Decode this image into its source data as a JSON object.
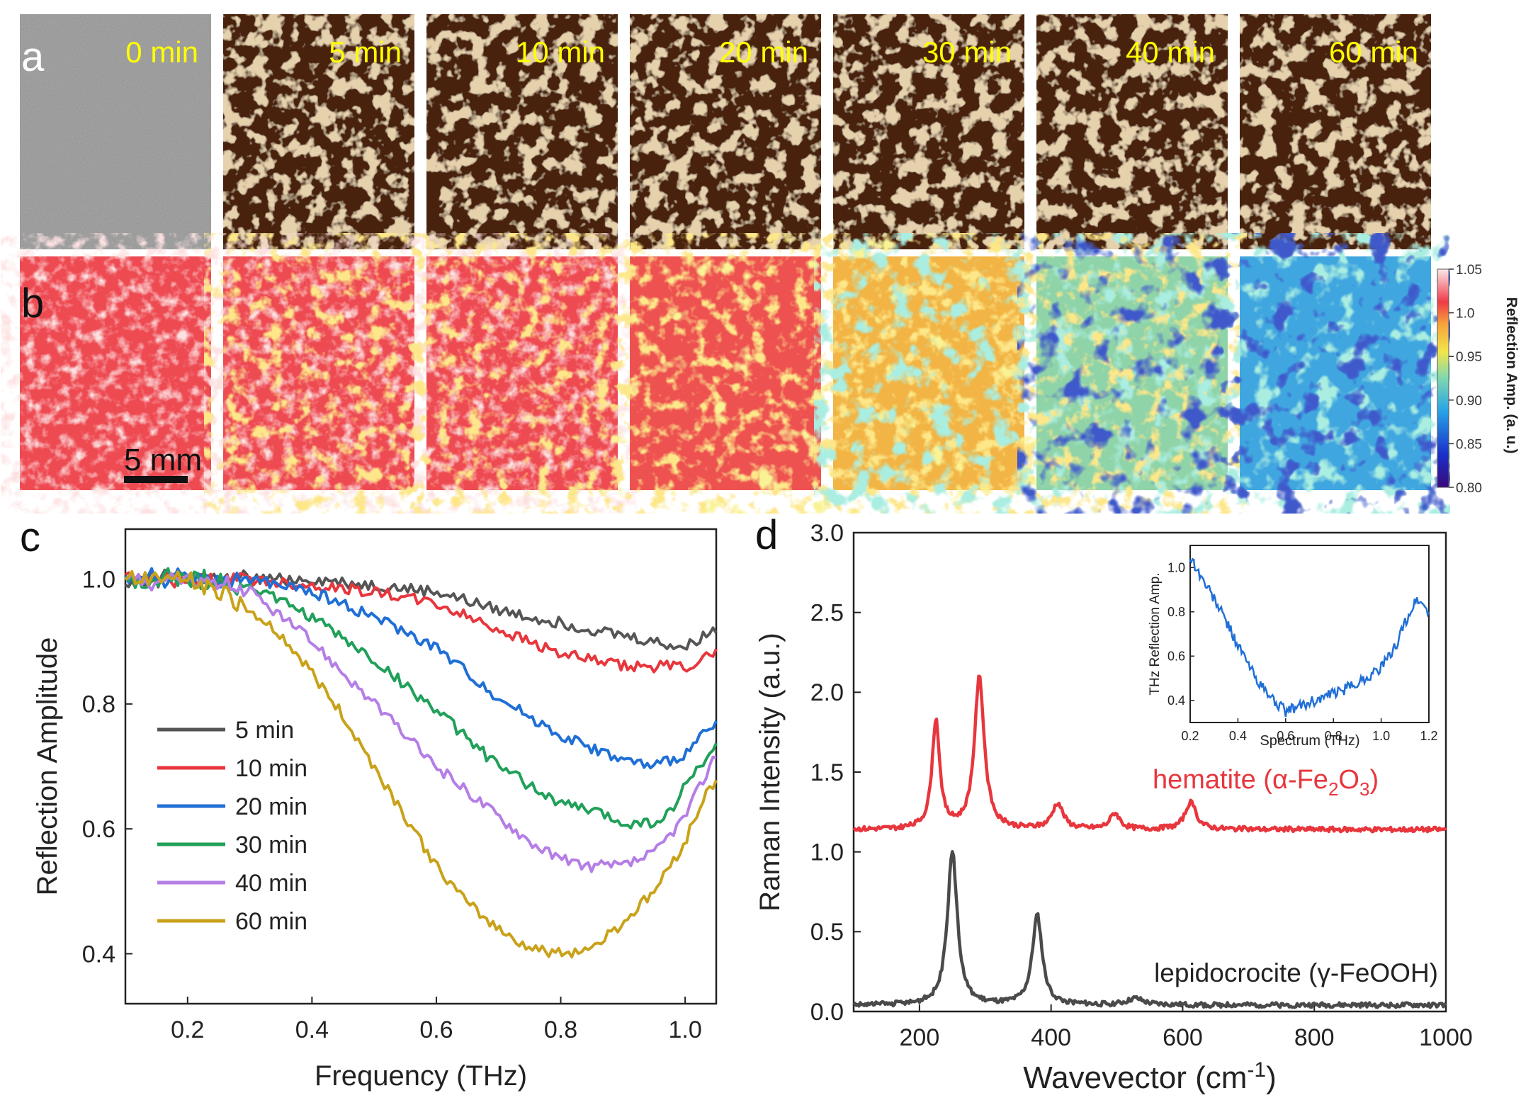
{
  "panels": {
    "a": {
      "label": "a",
      "times": [
        "0 min",
        "5 min",
        "10 min",
        "20 min",
        "30 min",
        "40 min",
        "60 min"
      ]
    },
    "b": {
      "label": "b",
      "scale_bar": "5 mm"
    },
    "c": {
      "label": "c"
    },
    "d": {
      "label": "d"
    }
  },
  "colorbar": {
    "label": "Reflection Amp. (a. u.)",
    "ticks": [
      "1.05",
      "1.0",
      "0.95",
      "0.90",
      "0.85",
      "0.80"
    ],
    "values": [
      1.05,
      1.0,
      0.95,
      0.9,
      0.85,
      0.8
    ]
  },
  "colors": {
    "photo_0": "#8c8c8c",
    "photo_rust_dark": "#4a2410",
    "photo_rust_light": "#c9a36a",
    "time_label": "#ffff00",
    "series_5": "#555555",
    "series_10": "#e8363d",
    "series_20": "#1f6fd6",
    "series_30": "#21a05a",
    "series_40": "#b57ee6",
    "series_60": "#c9a21a",
    "hematite": "#e8363d",
    "lepidocrocite": "#4a4a4a",
    "inset": "#1f6fd6"
  },
  "chart_data": [
    {
      "panel": "c",
      "type": "line",
      "xlabel": "Frequency (THz)",
      "ylabel": "Reflection Amplitude",
      "xlim": [
        0.1,
        1.05
      ],
      "ylim": [
        0.32,
        1.08
      ],
      "xticks": [
        "0.2",
        "0.4",
        "0.6",
        "0.8",
        "1.0"
      ],
      "xtick_values": [
        0.2,
        0.4,
        0.6,
        0.8,
        1.0
      ],
      "yticks": [
        "0.4",
        "0.6",
        "0.8",
        "1.0"
      ],
      "ytick_values": [
        0.4,
        0.6,
        0.8,
        1.0
      ],
      "legend": "left",
      "series": [
        {
          "name": "5 min",
          "x": [
            0.1,
            0.2,
            0.3,
            0.4,
            0.5,
            0.6,
            0.7,
            0.8,
            0.9,
            0.95,
            1.0,
            1.03,
            1.05
          ],
          "values": [
            1.0,
            1.0,
            1.0,
            1.0,
            0.99,
            0.98,
            0.95,
            0.93,
            0.91,
            0.9,
            0.89,
            0.91,
            0.92
          ]
        },
        {
          "name": "10 min",
          "x": [
            0.1,
            0.2,
            0.3,
            0.4,
            0.5,
            0.6,
            0.7,
            0.8,
            0.85,
            0.9,
            0.95,
            1.0,
            1.03,
            1.05
          ],
          "values": [
            1.0,
            1.0,
            1.0,
            0.99,
            0.98,
            0.96,
            0.92,
            0.88,
            0.87,
            0.86,
            0.86,
            0.86,
            0.87,
            0.89
          ]
        },
        {
          "name": "20 min",
          "x": [
            0.1,
            0.2,
            0.3,
            0.4,
            0.5,
            0.6,
            0.7,
            0.8,
            0.85,
            0.9,
            0.95,
            1.0,
            1.03,
            1.05
          ],
          "values": [
            1.0,
            1.0,
            1.0,
            0.98,
            0.94,
            0.89,
            0.81,
            0.75,
            0.73,
            0.71,
            0.7,
            0.72,
            0.75,
            0.77
          ]
        },
        {
          "name": "30 min",
          "x": [
            0.1,
            0.2,
            0.3,
            0.4,
            0.5,
            0.6,
            0.7,
            0.8,
            0.85,
            0.9,
            0.95,
            0.98,
            1.0,
            1.03,
            1.05
          ],
          "values": [
            1.0,
            1.0,
            0.99,
            0.94,
            0.87,
            0.79,
            0.7,
            0.64,
            0.63,
            0.61,
            0.61,
            0.63,
            0.67,
            0.71,
            0.73
          ]
        },
        {
          "name": "40 min",
          "x": [
            0.1,
            0.2,
            0.3,
            0.4,
            0.5,
            0.6,
            0.7,
            0.75,
            0.8,
            0.85,
            0.9,
            0.95,
            1.0,
            1.03,
            1.05
          ],
          "values": [
            1.0,
            1.0,
            0.98,
            0.9,
            0.8,
            0.7,
            0.62,
            0.58,
            0.55,
            0.54,
            0.54,
            0.56,
            0.62,
            0.68,
            0.72
          ]
        },
        {
          "name": "60 min",
          "x": [
            0.1,
            0.15,
            0.2,
            0.25,
            0.3,
            0.35,
            0.4,
            0.45,
            0.5,
            0.55,
            0.6,
            0.65,
            0.7,
            0.75,
            0.8,
            0.85,
            0.9,
            0.95,
            1.0,
            1.03,
            1.05
          ],
          "values": [
            1.0,
            1.0,
            1.0,
            0.98,
            0.95,
            0.91,
            0.85,
            0.78,
            0.7,
            0.62,
            0.54,
            0.48,
            0.44,
            0.41,
            0.4,
            0.41,
            0.45,
            0.5,
            0.58,
            0.65,
            0.68
          ]
        }
      ]
    },
    {
      "panel": "d",
      "type": "line",
      "xlabel": "Wavevector (cm",
      "xlabel_sup": "-1",
      "xlabel_end": ")",
      "ylabel": "Raman Intensity (a.u.)",
      "xlim": [
        100,
        1000
      ],
      "ylim": [
        0,
        3.0
      ],
      "xticks": [
        "200",
        "400",
        "600",
        "800",
        "1000"
      ],
      "xtick_values": [
        200,
        400,
        600,
        800,
        1000
      ],
      "yticks": [
        "0.0",
        "0.5",
        "1.0",
        "1.5",
        "2.0",
        "2.5",
        "3.0"
      ],
      "ytick_values": [
        0.0,
        0.5,
        1.0,
        1.5,
        2.0,
        2.5,
        3.0
      ],
      "series": [
        {
          "name": "hematite",
          "label_main": "hematite (",
          "label_alpha": "α-Fe",
          "label_sub1": "2",
          "label_mid": "O",
          "label_sub2": "3",
          "label_end": ")",
          "baseline": 1.14,
          "peaks": [
            {
              "center": 225,
              "height": 0.68,
              "width": 7
            },
            {
              "center": 291,
              "height": 0.95,
              "width": 9
            },
            {
              "center": 410,
              "height": 0.16,
              "width": 10
            },
            {
              "center": 497,
              "height": 0.1,
              "width": 9
            },
            {
              "center": 612,
              "height": 0.17,
              "width": 10
            }
          ]
        },
        {
          "name": "lepidocrocite",
          "label": "lepidocrocite (γ-FeOOH)",
          "baseline": 0.04,
          "peaks": [
            {
              "center": 250,
              "height": 0.96,
              "width": 9
            },
            {
              "center": 379,
              "height": 0.56,
              "width": 9
            },
            {
              "center": 528,
              "height": 0.04,
              "width": 14
            }
          ]
        }
      ]
    },
    {
      "panel": "d-inset",
      "type": "line",
      "xlabel": "Spectrum (THz)",
      "ylabel": "THz Reflection Amp.",
      "xlim": [
        0.2,
        1.2
      ],
      "ylim": [
        0.3,
        1.1
      ],
      "xticks": [
        "0.2",
        "0.4",
        "0.6",
        "0.8",
        "1.0",
        "1.2"
      ],
      "xtick_values": [
        0.2,
        0.4,
        0.6,
        0.8,
        1.0,
        1.2
      ],
      "yticks": [
        "0.4",
        "0.6",
        "0.8",
        "1.0"
      ],
      "ytick_values": [
        0.4,
        0.6,
        0.8,
        1.0
      ],
      "series": [
        {
          "name": "inset",
          "x": [
            0.2,
            0.25,
            0.3,
            0.35,
            0.4,
            0.45,
            0.5,
            0.55,
            0.6,
            0.65,
            0.7,
            0.75,
            0.8,
            0.85,
            0.9,
            0.95,
            1.0,
            1.05,
            1.1,
            1.15,
            1.2
          ],
          "values": [
            1.05,
            0.95,
            0.86,
            0.76,
            0.65,
            0.55,
            0.46,
            0.4,
            0.35,
            0.37,
            0.39,
            0.41,
            0.43,
            0.45,
            0.48,
            0.51,
            0.55,
            0.62,
            0.75,
            0.86,
            0.8
          ]
        }
      ]
    }
  ]
}
